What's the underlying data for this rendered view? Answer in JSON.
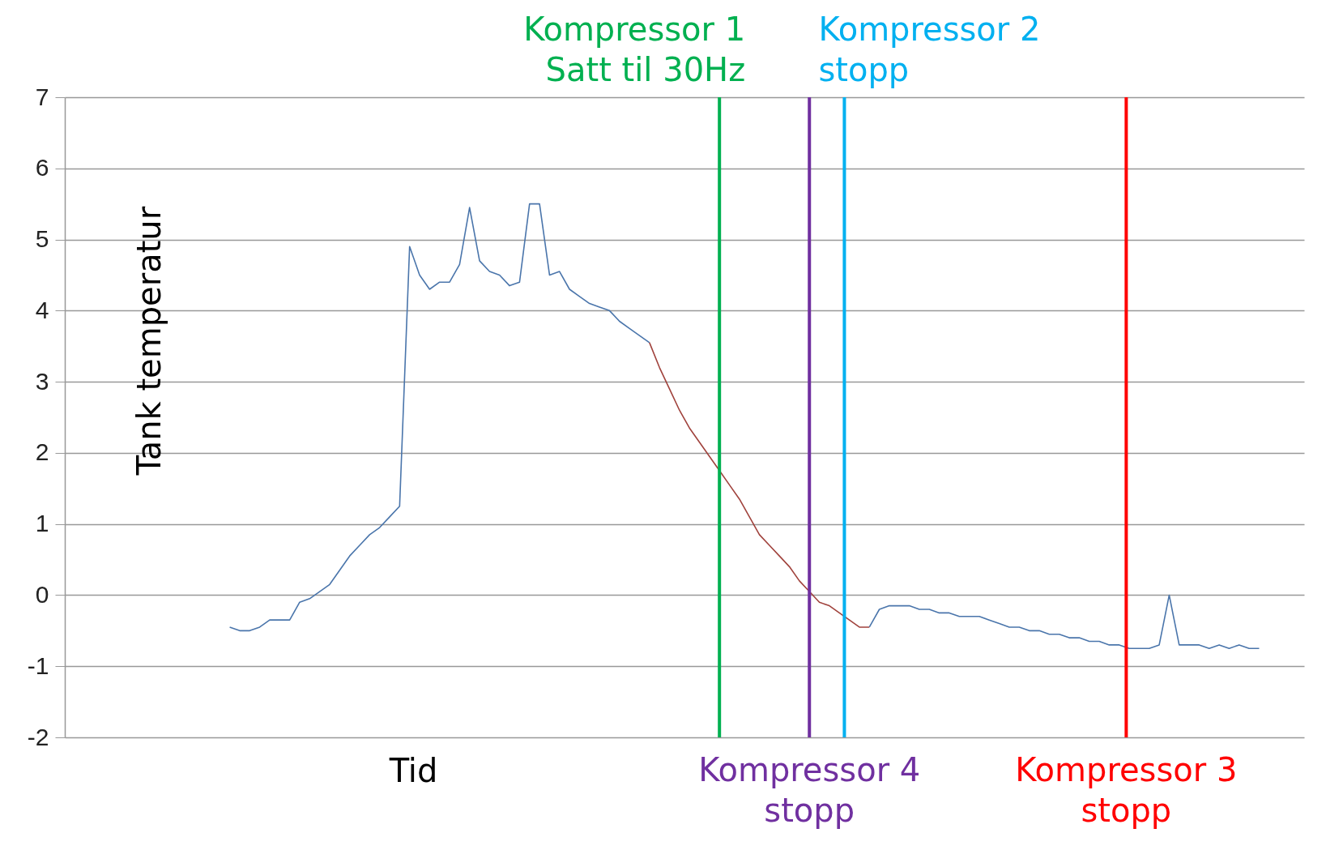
{
  "chart_data": {
    "type": "line",
    "xlabel": "Tid",
    "ylabel": "Tank temperatur",
    "categories": [
      null,
      null,
      null,
      null,
      null,
      null,
      null,
      null,
      null,
      null,
      null,
      null,
      null,
      null,
      null,
      null,
      null,
      null,
      null,
      null,
      null,
      null,
      null,
      null,
      null,
      null,
      null,
      null,
      null,
      null,
      null,
      null,
      null,
      null,
      null,
      null,
      null,
      null,
      null,
      null,
      null,
      null,
      null,
      null,
      null,
      null,
      null,
      null,
      null,
      null,
      null,
      null,
      null,
      null,
      null,
      null,
      null,
      null,
      null,
      null,
      null,
      null,
      null,
      null,
      null,
      null,
      null,
      null,
      null,
      null,
      null,
      null,
      null,
      null,
      null,
      null,
      null,
      null,
      null,
      null,
      null,
      null,
      null,
      null,
      null,
      null,
      null,
      null,
      null,
      null,
      null,
      null,
      null,
      null,
      null,
      null,
      null,
      null,
      null,
      null,
      null,
      null,
      null,
      null,
      null,
      null,
      null,
      null,
      null,
      null,
      null,
      null,
      null,
      null,
      null,
      null,
      null,
      null,
      null,
      null,
      null,
      null,
      null,
      null
    ],
    "series": [
      {
        "color": "#4a75ab",
        "values": [
          null,
          null,
          null,
          null,
          null,
          null,
          null,
          null,
          null,
          null,
          null,
          null,
          null,
          null,
          null,
          null,
          -0.45,
          -0.5,
          -0.5,
          -0.45,
          -0.35,
          -0.35,
          -0.35,
          -0.1,
          -0.05,
          0.05,
          0.15,
          0.35,
          0.55,
          0.7,
          0.85,
          0.95,
          1.1,
          1.25,
          4.9,
          4.5,
          4.3,
          4.4,
          4.4,
          4.65,
          5.45,
          4.7,
          4.55,
          4.5,
          4.35,
          4.4,
          5.5,
          5.5,
          4.5,
          4.55,
          4.3,
          4.2,
          4.1,
          4.05,
          4.0,
          3.85,
          3.75,
          3.65,
          3.55,
          null,
          null,
          null,
          null,
          null,
          null,
          null,
          null,
          null,
          null,
          null,
          null,
          null,
          null,
          null,
          null,
          null,
          null,
          null,
          null,
          null,
          -0.45,
          -0.2,
          -0.15,
          -0.15,
          -0.15,
          -0.2,
          -0.2,
          -0.25,
          -0.25,
          -0.3,
          -0.3,
          -0.3,
          -0.35,
          -0.4,
          -0.45,
          -0.45,
          -0.5,
          -0.5,
          -0.55,
          -0.55,
          -0.6,
          -0.6,
          -0.65,
          -0.65,
          -0.7,
          -0.7,
          -0.75,
          -0.75,
          -0.75,
          -0.7,
          0.0,
          -0.7,
          -0.7,
          -0.7,
          -0.75,
          -0.7,
          -0.75,
          -0.7,
          -0.75,
          -0.75,
          null,
          null,
          null,
          null
        ]
      },
      {
        "color": "#a0423c",
        "values": [
          null,
          null,
          null,
          null,
          null,
          null,
          null,
          null,
          null,
          null,
          null,
          null,
          null,
          null,
          null,
          null,
          null,
          null,
          null,
          null,
          null,
          null,
          null,
          null,
          null,
          null,
          null,
          null,
          null,
          null,
          null,
          null,
          null,
          null,
          null,
          null,
          null,
          null,
          null,
          null,
          null,
          null,
          null,
          null,
          null,
          null,
          null,
          null,
          null,
          null,
          null,
          null,
          null,
          null,
          null,
          null,
          null,
          null,
          3.55,
          3.2,
          2.9,
          2.6,
          2.35,
          2.15,
          1.95,
          1.75,
          1.55,
          1.35,
          1.1,
          0.85,
          0.7,
          0.55,
          0.4,
          0.2,
          0.05,
          -0.1,
          -0.15,
          -0.25,
          -0.35,
          -0.45,
          -0.45,
          null,
          null,
          null,
          null,
          null,
          null,
          null,
          null,
          null,
          null,
          null,
          null,
          null,
          null,
          null,
          null,
          null,
          null,
          null,
          null,
          null,
          null,
          null,
          null,
          null,
          null,
          null,
          null,
          null,
          null,
          null,
          null,
          null,
          null,
          null,
          null,
          null,
          null,
          null,
          null,
          null,
          null,
          null
        ]
      }
    ],
    "ylim": [
      -2,
      7
    ],
    "yticks": [
      -2,
      -1,
      0,
      1,
      2,
      3,
      4,
      5,
      6,
      7
    ],
    "grid": "y",
    "tick_labels": "y",
    "annotations": [
      "Kompressor 1\nSatt til 30Hz",
      "Kompressor 4\nstopp",
      "Kompressor 2\nstopp",
      "Kompressor 3\nstopp"
    ]
  }
}
